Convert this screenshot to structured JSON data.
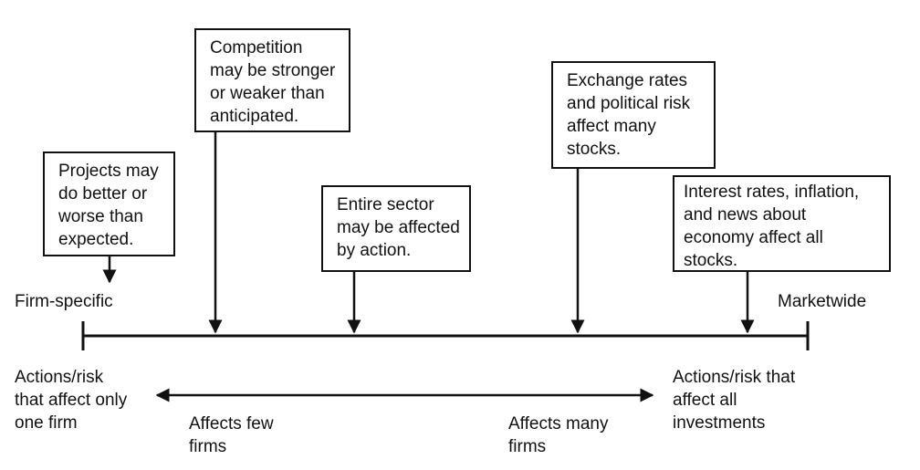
{
  "boxes": {
    "projects": [
      "Projects may",
      "do better or",
      "worse than",
      "expected."
    ],
    "competition": [
      "Competition",
      "may be stronger",
      "or weaker than",
      "anticipated."
    ],
    "sector": [
      "Entire sector",
      "may be affected",
      "by action."
    ],
    "exchange": [
      "Exchange rates",
      "and political risk",
      "affect many",
      "stocks."
    ],
    "interest": [
      "Interest rates, inflation,",
      "and news about",
      "economy affect all",
      "stocks."
    ]
  },
  "ends": {
    "left": "Firm-specific",
    "right": "Marketwide"
  },
  "bottom": {
    "left": [
      "Actions/risk",
      "that affect only",
      "one firm"
    ],
    "right": [
      "Actions/risk that",
      "affect all",
      "investments"
    ],
    "few": [
      "Affects few",
      "firms"
    ],
    "many": [
      "Affects many",
      "firms"
    ]
  }
}
